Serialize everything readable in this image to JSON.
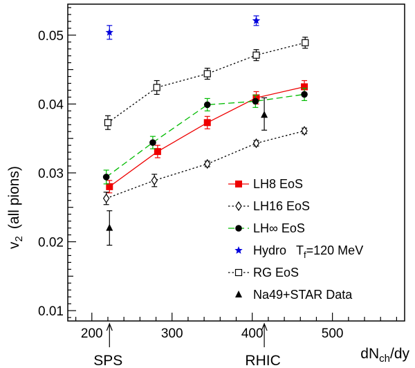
{
  "chart_data": {
    "type": "line",
    "xlabel": "dN",
    "xlabel_sub": "ch",
    "xlabel_tail": "/dy",
    "ylabel": "v",
    "ylabel_sub": "2",
    "ylabel_tail": "(all pions)",
    "xlim": [
      170,
      590
    ],
    "ylim": [
      0.0085,
      0.0545
    ],
    "x_ticks": [
      200,
      300,
      400,
      500
    ],
    "y_ticks": [
      0.01,
      0.02,
      0.03,
      0.04,
      0.05
    ],
    "x_tick_labels": [
      "200",
      "300",
      "400",
      "500"
    ],
    "y_tick_labels": [
      "0.01",
      "0.02",
      "0.03",
      "0.04",
      "0.05"
    ],
    "grid": false,
    "legend_position": "lower-right",
    "series": [
      {
        "name": "LH8 EoS",
        "color": "#ee0000",
        "marker": "filled-square",
        "line": "solid",
        "points": [
          {
            "x": 222,
            "y": 0.028,
            "err": 0.0009
          },
          {
            "x": 282,
            "y": 0.0331,
            "err": 0.0009
          },
          {
            "x": 344,
            "y": 0.0373,
            "err": 0.0009
          },
          {
            "x": 405,
            "y": 0.0409,
            "err": 0.0009
          },
          {
            "x": 465,
            "y": 0.0425,
            "err": 0.0009
          }
        ]
      },
      {
        "name": "LH16 EoS",
        "color": "#000000",
        "marker": "open-diamond",
        "line": "dotted",
        "points": [
          {
            "x": 218,
            "y": 0.0263,
            "err": 0.0009
          },
          {
            "x": 278,
            "y": 0.0289,
            "err": 0.0009
          },
          {
            "x": 344,
            "y": 0.0313,
            "err": 0.0004
          },
          {
            "x": 405,
            "y": 0.0343,
            "err": 0.0004
          },
          {
            "x": 465,
            "y": 0.0361,
            "err": 0.0004
          }
        ]
      },
      {
        "name": "LH∞ EoS",
        "color": "#00bb00",
        "marker": "filled-circle",
        "marker_color": "#000000",
        "line": "dashed",
        "points": [
          {
            "x": 218,
            "y": 0.0294,
            "err": 0.001
          },
          {
            "x": 276,
            "y": 0.0344,
            "err": 0.0009
          },
          {
            "x": 344,
            "y": 0.0399,
            "err": 0.0009
          },
          {
            "x": 404,
            "y": 0.0404,
            "err": 0.0009
          },
          {
            "x": 465,
            "y": 0.0414,
            "err": 0.0009
          }
        ]
      },
      {
        "name": "Hydro",
        "name_tail": "T",
        "name_sub": "f",
        "name_rest": "=120 MeV",
        "color": "#0000dd",
        "marker": "star",
        "line": "none",
        "points": [
          {
            "x": 222,
            "y": 0.0504,
            "err": 0.001
          },
          {
            "x": 405,
            "y": 0.0521,
            "err": 0.0007
          }
        ]
      },
      {
        "name": "RG EoS",
        "color": "#000000",
        "marker": "open-square",
        "line": "dotted",
        "points": [
          {
            "x": 220,
            "y": 0.0373,
            "err": 0.001
          },
          {
            "x": 281,
            "y": 0.0424,
            "err": 0.001
          },
          {
            "x": 344,
            "y": 0.0444,
            "err": 0.0008
          },
          {
            "x": 405,
            "y": 0.0471,
            "err": 0.0008
          },
          {
            "x": 466,
            "y": 0.0489,
            "err": 0.0008
          }
        ]
      },
      {
        "name": "Na49+STAR Data",
        "color": "#000000",
        "marker": "filled-triangle",
        "line": "none",
        "points": [
          {
            "x": 222,
            "y": 0.022,
            "err_up": 0.0025,
            "err_down": 0.0025
          },
          {
            "x": 415,
            "y": 0.0384,
            "err_up": 0.0025,
            "err_down": 0.0022
          }
        ]
      }
    ],
    "annotations": [
      {
        "text": "SPS",
        "x": 222
      },
      {
        "text": "RHIC",
        "x": 415
      }
    ]
  }
}
